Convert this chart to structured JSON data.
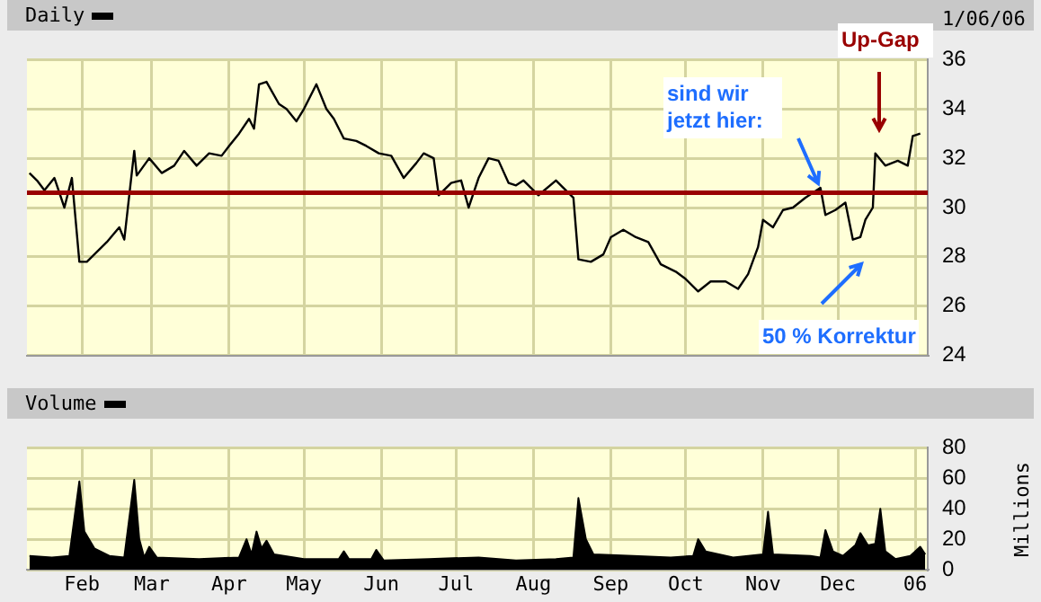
{
  "chart_data": [
    {
      "type": "line",
      "title": "Daily",
      "color": "#000000",
      "x": [
        "2005-01-11",
        "2005-01-14",
        "2005-01-17",
        "2005-01-21",
        "2005-01-25",
        "2005-01-28",
        "2005-01-31",
        "2005-02-03",
        "2005-02-08",
        "2005-02-11",
        "2005-02-16",
        "2005-02-18",
        "2005-02-22",
        "2005-02-23",
        "2005-02-28",
        "2005-03-05",
        "2005-03-10",
        "2005-03-14",
        "2005-03-19",
        "2005-03-24",
        "2005-03-29",
        "2005-04-01",
        "2005-04-05",
        "2005-04-09",
        "2005-04-11",
        "2005-04-13",
        "2005-04-16",
        "2005-04-21",
        "2005-04-24",
        "2005-04-28",
        "2005-05-01",
        "2005-05-06",
        "2005-05-10",
        "2005-05-13",
        "2005-05-17",
        "2005-05-22",
        "2005-05-26",
        "2005-05-31",
        "2005-06-05",
        "2005-06-10",
        "2005-06-15",
        "2005-06-18",
        "2005-06-22",
        "2005-06-24",
        "2005-06-29",
        "2005-07-03",
        "2005-07-06",
        "2005-07-10",
        "2005-07-14",
        "2005-07-18",
        "2005-07-22",
        "2005-07-25",
        "2005-07-28",
        "2005-08-03",
        "2005-08-10",
        "2005-08-17",
        "2005-08-19",
        "2005-08-24",
        "2005-08-29",
        "2005-09-01",
        "2005-09-06",
        "2005-09-11",
        "2005-09-16",
        "2005-09-21",
        "2005-09-27",
        "2005-10-01",
        "2005-10-06",
        "2005-10-11",
        "2005-10-17",
        "2005-10-22",
        "2005-10-26",
        "2005-10-30",
        "2005-11-01",
        "2005-11-05",
        "2005-11-09",
        "2005-11-13",
        "2005-11-18",
        "2005-11-24",
        "2005-11-26",
        "2005-11-30",
        "2005-12-04",
        "2005-12-07",
        "2005-12-10",
        "2005-12-12",
        "2005-12-15",
        "2005-12-16",
        "2005-12-20",
        "2005-12-25",
        "2005-12-29",
        "2005-12-31",
        "2006-01-03"
      ],
      "values": [
        31.4,
        31.1,
        30.7,
        31.2,
        30.0,
        31.2,
        27.8,
        27.8,
        28.3,
        28.6,
        29.2,
        28.7,
        32.3,
        31.3,
        32.0,
        31.4,
        31.7,
        32.3,
        31.7,
        32.2,
        32.1,
        32.5,
        33.0,
        33.6,
        33.2,
        35.0,
        35.1,
        34.2,
        34.0,
        33.5,
        34.0,
        35.0,
        34.0,
        33.6,
        32.8,
        32.7,
        32.5,
        32.2,
        32.1,
        31.2,
        31.8,
        32.2,
        32.0,
        30.5,
        31.0,
        31.1,
        30.0,
        31.2,
        32.0,
        31.9,
        31.0,
        30.9,
        31.1,
        30.5,
        31.1,
        30.4,
        27.9,
        27.8,
        28.1,
        28.8,
        29.1,
        28.8,
        28.6,
        27.7,
        27.4,
        27.1,
        26.6,
        27.0,
        27.0,
        26.7,
        27.3,
        28.4,
        29.5,
        29.2,
        29.9,
        30.0,
        30.4,
        30.8,
        29.7,
        29.9,
        30.2,
        28.7,
        28.8,
        29.5,
        30.0,
        32.2,
        31.7,
        31.9,
        31.7,
        32.9,
        33.0
      ],
      "xlim": [
        "2005-01-10",
        "2006-01-06"
      ],
      "xticks": [
        {
          "value": "2005-02-01",
          "label": null
        },
        {
          "value": "2005-03-01",
          "label": null
        },
        {
          "value": "2005-04-01",
          "label": null
        },
        {
          "value": "2005-05-01",
          "label": null
        },
        {
          "value": "2005-06-01",
          "label": null
        },
        {
          "value": "2005-07-01",
          "label": null
        },
        {
          "value": "2005-08-01",
          "label": null
        },
        {
          "value": "2005-09-01",
          "label": null
        },
        {
          "value": "2005-10-01",
          "label": null
        },
        {
          "value": "2005-11-01",
          "label": null
        },
        {
          "value": "2005-12-01",
          "label": null
        },
        {
          "value": "2006-01-01",
          "label": null
        }
      ],
      "ylim": [
        24,
        36
      ],
      "yticks": [
        24,
        26,
        28,
        30,
        32,
        34,
        36
      ],
      "tick_labels": "y",
      "grid": true,
      "legend": false,
      "ref_lines": [
        {
          "axis": "y",
          "value": 30.6,
          "color": "#990000"
        }
      ],
      "annotations": [
        "1/06/06",
        "Up-Gap",
        "sind wir jetzt hier:",
        "50 % Korrektur"
      ]
    },
    {
      "type": "area",
      "title": "Volume",
      "ylabel": "Millions",
      "color": "#000000",
      "x": [
        "2005-01-11",
        "2005-01-20",
        "2005-01-27",
        "2005-01-31",
        "2005-02-02",
        "2005-02-06",
        "2005-02-12",
        "2005-02-18",
        "2005-02-22",
        "2005-02-24",
        "2005-02-26",
        "2005-02-28",
        "2005-03-03",
        "2005-03-20",
        "2005-04-05",
        "2005-04-08",
        "2005-04-10",
        "2005-04-12",
        "2005-04-14",
        "2005-04-16",
        "2005-04-19",
        "2005-05-01",
        "2005-05-15",
        "2005-05-17",
        "2005-05-19",
        "2005-05-28",
        "2005-05-30",
        "2005-06-02",
        "2005-06-20",
        "2005-07-10",
        "2005-07-25",
        "2005-08-10",
        "2005-08-17",
        "2005-08-19",
        "2005-08-22",
        "2005-08-25",
        "2005-09-10",
        "2005-09-25",
        "2005-10-04",
        "2005-10-06",
        "2005-10-09",
        "2005-10-20",
        "2005-11-01",
        "2005-11-03",
        "2005-11-05",
        "2005-11-20",
        "2005-11-24",
        "2005-11-26",
        "2005-11-29",
        "2005-12-03",
        "2005-12-08",
        "2005-12-10",
        "2005-12-13",
        "2005-12-16",
        "2005-12-18",
        "2005-12-20",
        "2005-12-24",
        "2005-12-30",
        "2006-01-03",
        "2006-01-05"
      ],
      "values": [
        9,
        8,
        9,
        58,
        25,
        14,
        9,
        8,
        59,
        20,
        8,
        15,
        8,
        7,
        8,
        20,
        10,
        25,
        14,
        19,
        10,
        7,
        7,
        12,
        7,
        7,
        13,
        6,
        7,
        8,
        6,
        7,
        8,
        47,
        20,
        10,
        9,
        8,
        9,
        20,
        12,
        8,
        10,
        38,
        10,
        9,
        8,
        26,
        12,
        9,
        16,
        24,
        16,
        17,
        40,
        12,
        7,
        9,
        15,
        10
      ],
      "xlim": [
        "2005-01-10",
        "2006-01-06"
      ],
      "xticks": [
        {
          "value": "2005-02-01",
          "label": "Feb"
        },
        {
          "value": "2005-03-01",
          "label": "Mar"
        },
        {
          "value": "2005-04-01",
          "label": "Apr"
        },
        {
          "value": "2005-05-01",
          "label": "May"
        },
        {
          "value": "2005-06-01",
          "label": "Jun"
        },
        {
          "value": "2005-07-01",
          "label": "Jul"
        },
        {
          "value": "2005-08-01",
          "label": "Aug"
        },
        {
          "value": "2005-09-01",
          "label": "Sep"
        },
        {
          "value": "2005-10-01",
          "label": "Oct"
        },
        {
          "value": "2005-11-01",
          "label": "Nov"
        },
        {
          "value": "2005-12-01",
          "label": "Dec"
        },
        {
          "value": "2006-01-01",
          "label": "06"
        }
      ],
      "ylim": [
        0,
        80
      ],
      "yticks": [
        0,
        20,
        40,
        60,
        80
      ],
      "grid": true,
      "legend": false
    }
  ]
}
